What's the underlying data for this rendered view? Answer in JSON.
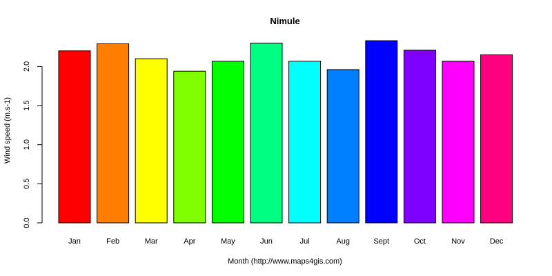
{
  "chart_data": {
    "type": "bar",
    "title": "Nimule",
    "xlabel": "Month (http://www.maps4gis.com)",
    "ylabel": "Wind speed (m.s-1)",
    "categories": [
      "Jan",
      "Feb",
      "Mar",
      "Apr",
      "May",
      "Jun",
      "Jul",
      "Aug",
      "Sept",
      "Oct",
      "Nov",
      "Dec"
    ],
    "values": [
      2.2,
      2.29,
      2.1,
      1.94,
      2.07,
      2.3,
      2.07,
      1.96,
      2.33,
      2.21,
      2.07,
      2.15
    ],
    "colors": [
      "#FF0000",
      "#FF8000",
      "#FFFF00",
      "#80FF00",
      "#00FF00",
      "#00FF80",
      "#00FFFF",
      "#0080FF",
      "#0000FF",
      "#8000FF",
      "#FF00FF",
      "#FF0080"
    ],
    "yticks": [
      "0.0",
      "0.5",
      "1.0",
      "1.5",
      "2.0"
    ],
    "ylim": [
      0,
      2.33
    ],
    "grid": false,
    "legend": "none"
  }
}
